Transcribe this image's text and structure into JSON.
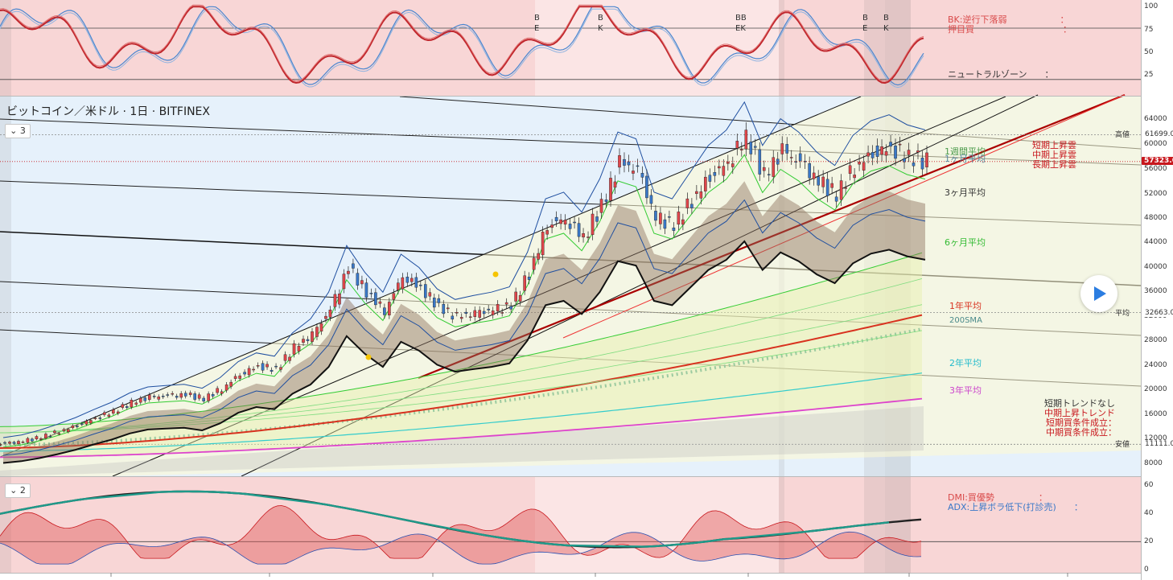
{
  "title": "ビットコイン／米ドル · 1日 · BITFINEX",
  "panes": {
    "main_toggle": "3",
    "dmi_toggle": "2"
  },
  "price_axis": {
    "ticks": [
      "64000",
      "60000",
      "56000",
      "52000",
      "48000",
      "44000",
      "40000",
      "36000",
      "32000",
      "28000",
      "24000",
      "20000",
      "16000",
      "12000",
      "8000"
    ],
    "tags": {
      "high_label": "高値",
      "high_value": "61699.0",
      "current_value": "57323.0",
      "avg_label": "平均",
      "avg_value": "32663.0",
      "low_label": "安値",
      "low_value": "11111.0"
    }
  },
  "stoch_axis": {
    "ticks": [
      "100",
      "75",
      "50",
      "25"
    ]
  },
  "dmi_axis": {
    "ticks": [
      "60",
      "40",
      "20",
      "0"
    ]
  },
  "stoch_pane": {
    "status_lines": [
      "BK:逆行下落弱　　　　　　：",
      "押目買　　　　　　　　　　："
    ],
    "neutral_label": "ニュートラルゾーン　　：",
    "markers": [
      {
        "top": "B",
        "bottom": "E"
      },
      {
        "top": "B",
        "bottom": "K"
      },
      {
        "top": "BB",
        "bottom": "EK"
      },
      {
        "top": "B",
        "bottom": "E"
      },
      {
        "top": "B",
        "bottom": "K"
      }
    ]
  },
  "ma_labels": {
    "w1": "1週間平均",
    "m1": "1ヶ月平均",
    "m3": "3ヶ月平均",
    "m6": "6ヶ月平均",
    "y1": "1年平均",
    "sma200": "200SMA",
    "y2": "2年平均",
    "y3": "3年平均"
  },
  "cloud_labels": [
    "短期上昇雲",
    "中期上昇雲",
    "長期上昇雲"
  ],
  "trend_status": [
    "短期トレンドなし",
    "中期上昇トレンド",
    "短期買条件成立：",
    "中期買条件成立："
  ],
  "dmi_pane": {
    "dmi_status": "DMI:買優勢　　　　　：",
    "adx_status": "ADX:上昇ボラ低下(打診売)　　："
  },
  "colors": {
    "up": "#e0464b",
    "down": "#3a78c8",
    "stoch_k": "#c0262c",
    "stoch_d": "#4a86d0",
    "ma_1y": "#d8321f",
    "ma_6m": "#33cc33",
    "ma_2y": "#33cccc",
    "ma_3y": "#dd44cc",
    "adx": "#222222"
  },
  "chart_data": {
    "type": "candlestick",
    "series": [
      {
        "name": "price_close",
        "values": [
          11200,
          11600,
          12300,
          13200,
          14200,
          15400,
          16500,
          17900,
          18800,
          19000,
          19200,
          18600,
          20200,
          22600,
          23900,
          23400,
          26900,
          29000,
          33000,
          40000,
          36000,
          33000,
          38700,
          36700,
          33500,
          31900,
          32500,
          33000,
          33800,
          39000,
          47000,
          48000,
          45000,
          50000,
          57000,
          56000,
          48000,
          47000,
          51000,
          55000,
          57300,
          61500,
          55000,
          59000,
          57000,
          54000,
          52000,
          56500,
          58700,
          59600,
          58100,
          57323
        ]
      }
    ],
    "price_range": [
      8000,
      64000
    ]
  }
}
